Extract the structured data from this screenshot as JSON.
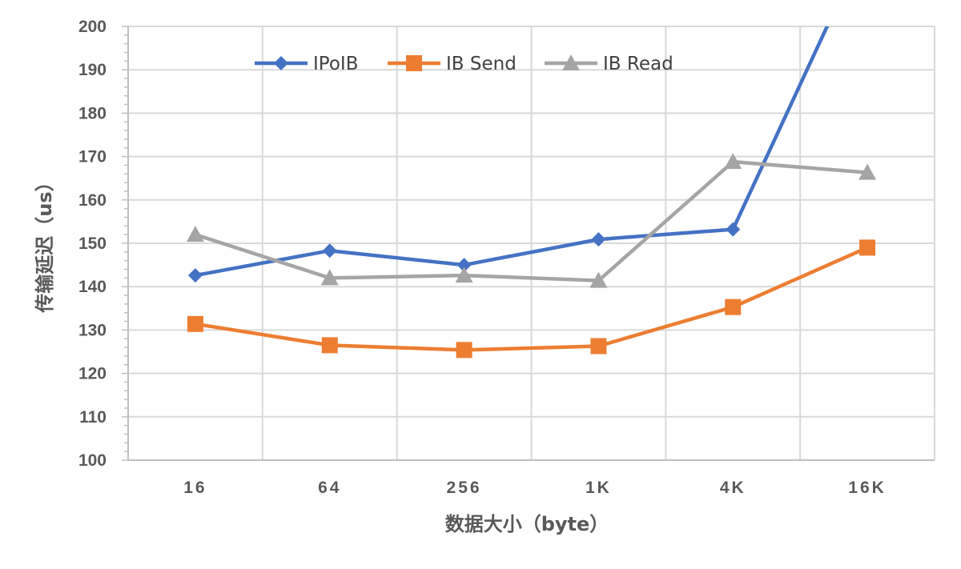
{
  "chart_data": {
    "type": "line",
    "categories": [
      "16",
      "64",
      "256",
      "1K",
      "4K",
      "16K"
    ],
    "series": [
      {
        "name": "IPoIB",
        "color": "#4472C4",
        "marker": "diamond",
        "values": [
          142.6,
          148.3,
          145.0,
          150.9,
          153.2,
          220
        ]
      },
      {
        "name": "IB Send",
        "color": "#ED7D31",
        "marker": "square",
        "values": [
          131.4,
          126.5,
          125.4,
          126.3,
          135.3,
          149.0
        ]
      },
      {
        "name": "IB Read",
        "color": "#A5A5A5",
        "marker": "triangle",
        "values": [
          152.0,
          142.0,
          142.6,
          141.4,
          168.8,
          166.3
        ]
      }
    ],
    "xlabel": "数据大小（byte）",
    "ylabel": "传输延迟（us）",
    "ylim": [
      100,
      200
    ],
    "yticks": [
      "100",
      "110",
      "120",
      "130",
      "140",
      "150",
      "160",
      "170",
      "180",
      "190",
      "200"
    ],
    "grid": true,
    "legend_position": "top"
  }
}
